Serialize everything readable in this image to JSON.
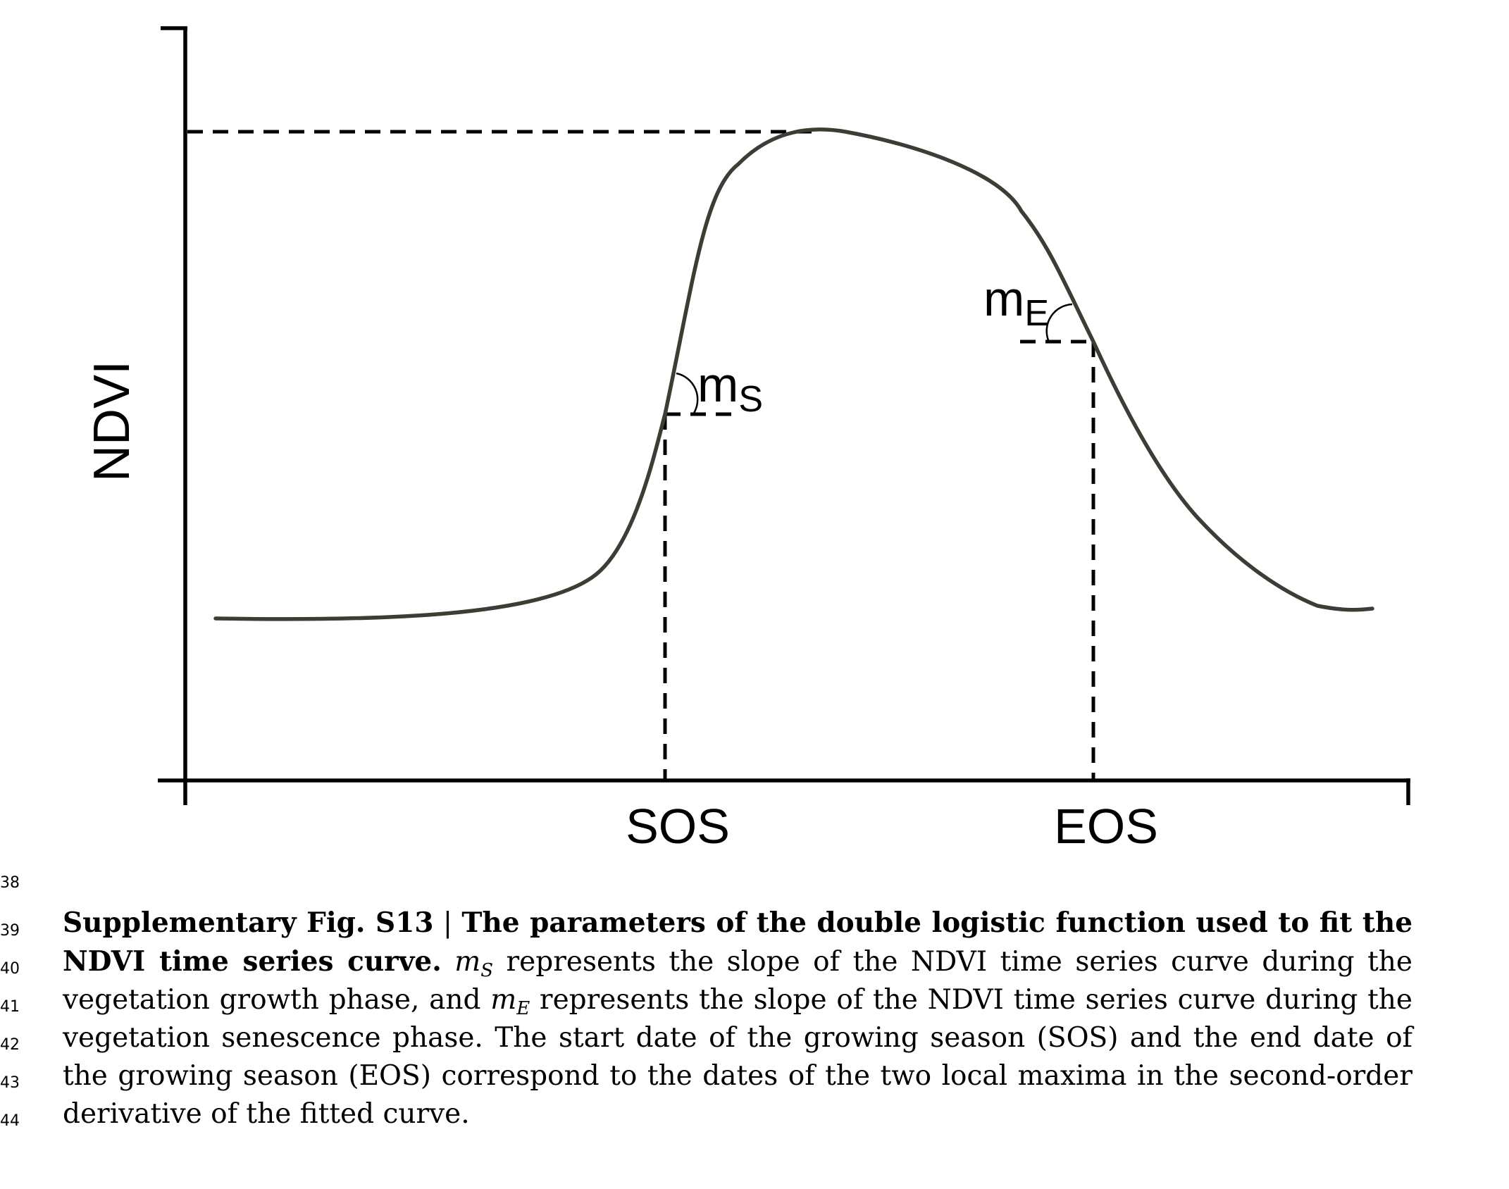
{
  "figure": {
    "y_axis_label": "NDVI",
    "x_tick_labels": [
      "SOS",
      "EOS"
    ],
    "slope_labels": {
      "growth": {
        "base": "m",
        "sub": "S"
      },
      "senescence": {
        "base": "m",
        "sub": "E"
      }
    },
    "curve_color": "#3d3d35"
  },
  "caption": {
    "label_prefix": "Supplementary Fig. S13",
    "separator": " | ",
    "title": "The parameters of the double logistic function used to fit the NDVI time series curve.",
    "seg1": " represents the slope of the NDVI time series curve during the vegetation growth phase, and ",
    "seg2": " represents the slope of the NDVI time series curve during the vegetation senescence phase. The start date of the growing season (SOS) and the end date of the growing season (EOS) correspond to the dates of the two local maxima in the second-order derivative of the fitted curve.",
    "math_s": {
      "base": "m",
      "sub": "S"
    },
    "math_e": {
      "base": "m",
      "sub": "E"
    }
  },
  "line_numbers": [
    "38",
    "39",
    "40",
    "41",
    "42",
    "43",
    "44"
  ]
}
